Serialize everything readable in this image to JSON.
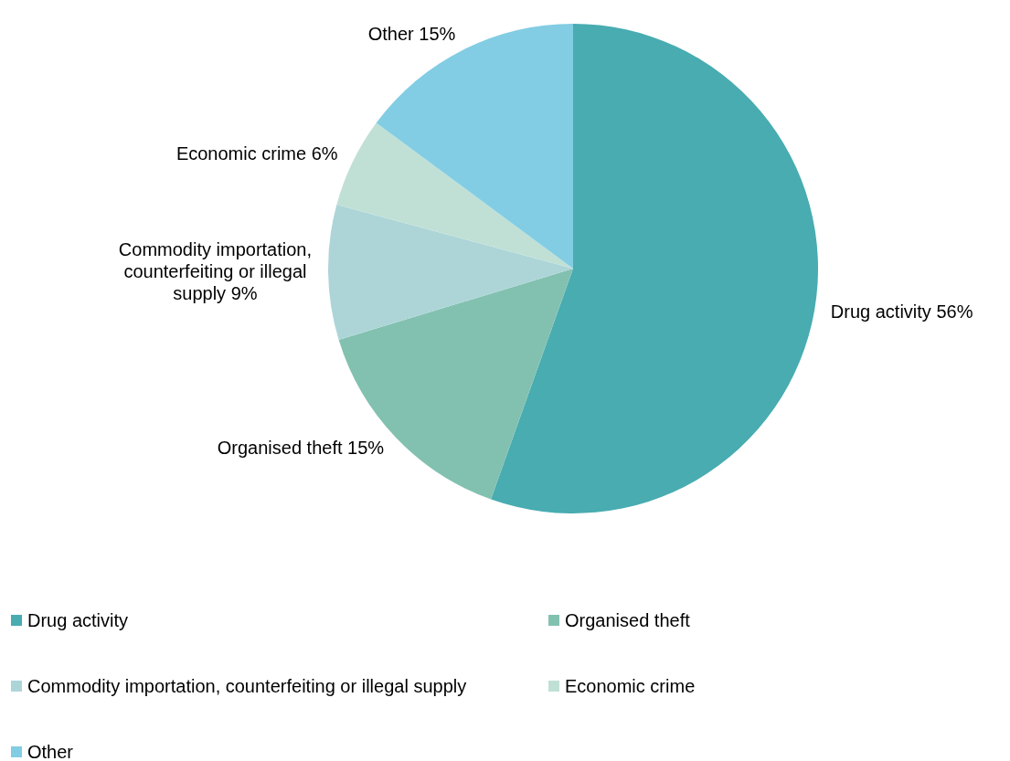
{
  "chart_data": {
    "type": "pie",
    "categories": [
      "Drug activity",
      "Organised theft",
      "Commodity importation, counterfeiting or illegal supply",
      "Economic crime",
      "Other"
    ],
    "values": [
      56,
      15,
      9,
      6,
      15
    ],
    "value_labels": [
      "56%",
      "15%",
      "9%",
      "6%",
      "15%"
    ],
    "colors": [
      "#48acb1",
      "#82c1b0",
      "#add5d8",
      "#c0e0d6",
      "#82cde3"
    ],
    "legend": "bottom"
  }
}
